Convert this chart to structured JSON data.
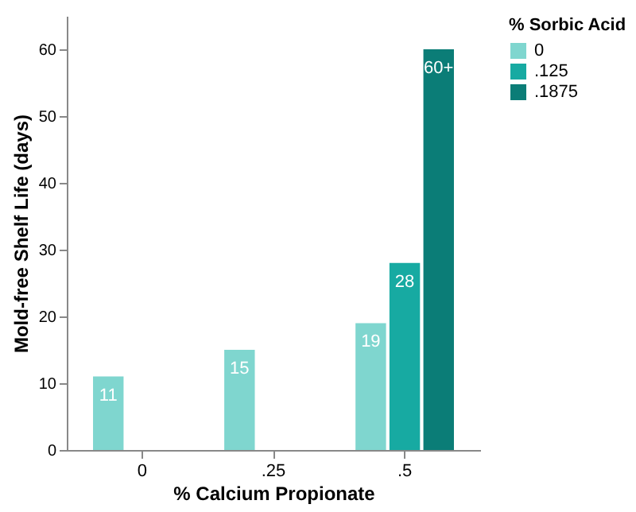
{
  "chart_data": {
    "type": "bar",
    "ylabel": "Mold-free Shelf Life (days)",
    "xlabel": "% Calcium Propionate",
    "legend_title": "% Sorbic Acid",
    "categories": [
      "0",
      ".25",
      ".5"
    ],
    "series": [
      {
        "name": "0",
        "color": "#7fd6cf",
        "values": [
          11,
          15,
          19
        ],
        "value_labels": [
          "11",
          "15",
          "19"
        ]
      },
      {
        "name": ".125",
        "color": "#17aaa2",
        "values": [
          null,
          null,
          28
        ],
        "value_labels": [
          null,
          null,
          "28"
        ]
      },
      {
        "name": ".1875",
        "color": "#0b7d77",
        "values": [
          null,
          null,
          60
        ],
        "value_labels": [
          null,
          null,
          "60+"
        ]
      }
    ],
    "ylim": [
      0,
      65
    ],
    "yticks": [
      0,
      10,
      20,
      30,
      40,
      50,
      60
    ],
    "grid": false,
    "legend": "right"
  }
}
